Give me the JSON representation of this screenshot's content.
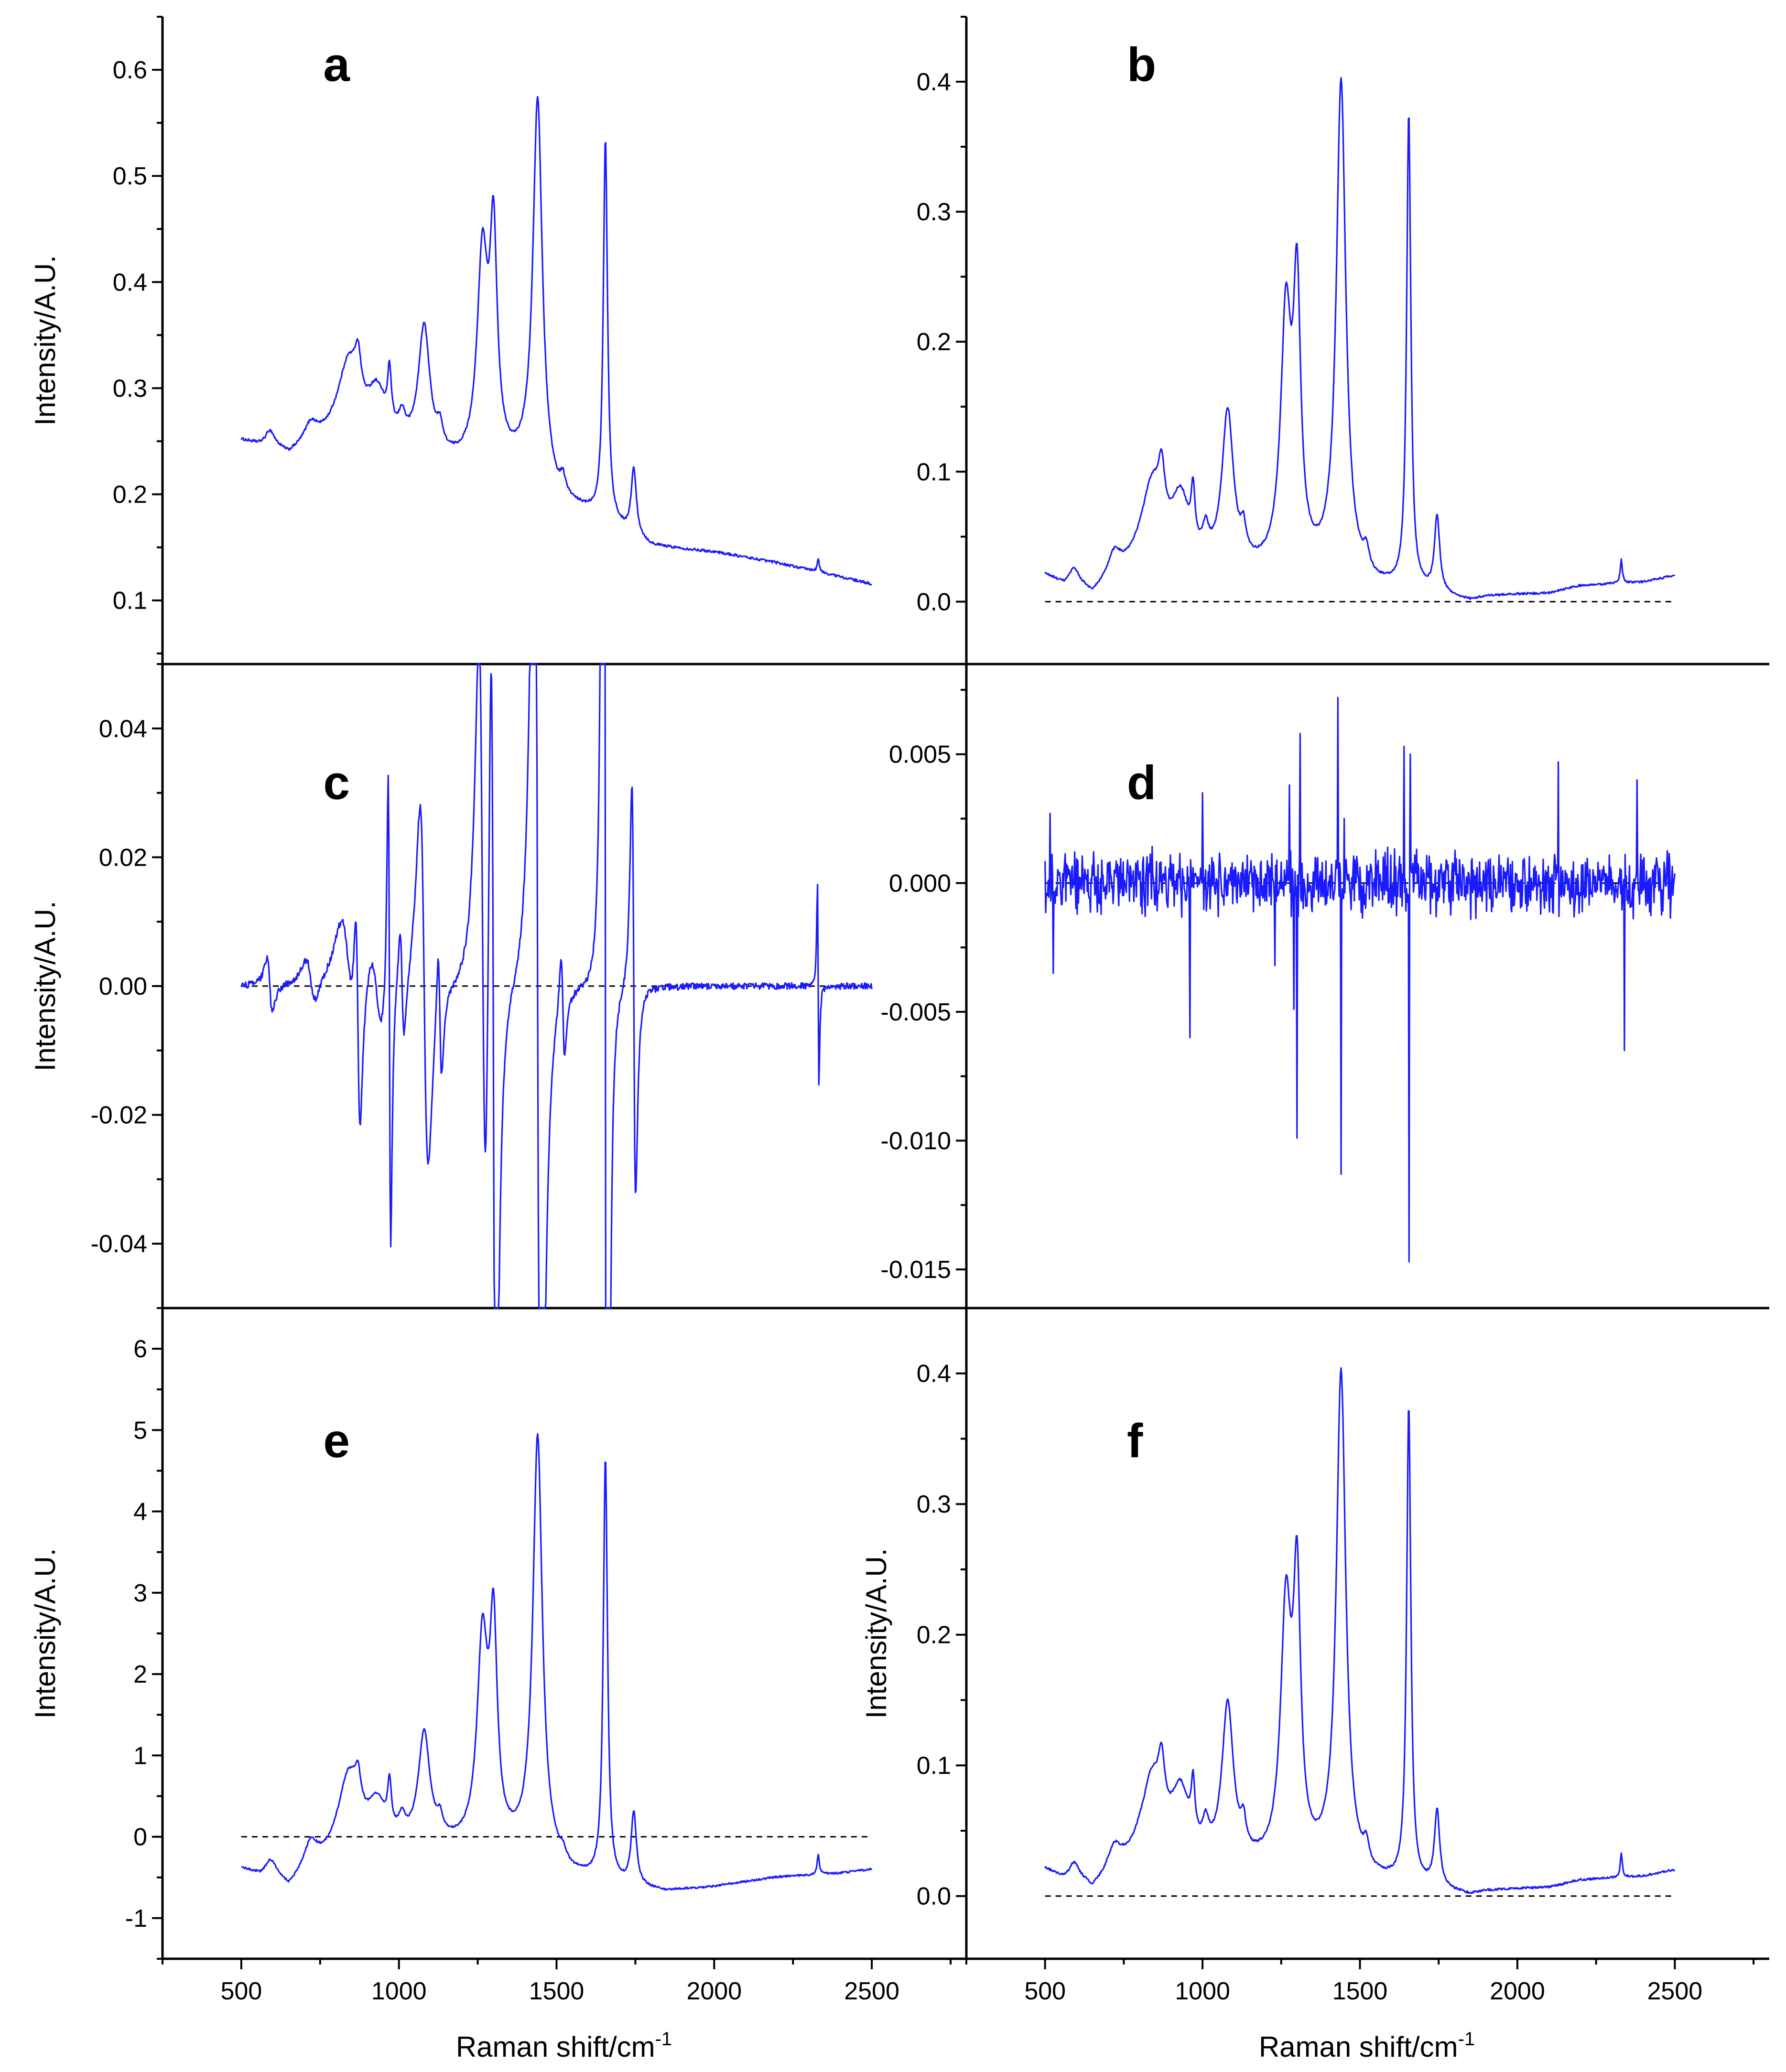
{
  "chart_data": {
    "type": "line",
    "layout": "3x2 grid of panels sharing the x axis within each column",
    "colors": {
      "line": "#1a1aff",
      "axes": "#000000",
      "zero_line": "#000000"
    },
    "shared_xlabel": "Raman shift/cm",
    "shared_xlabel_superscript": "-1",
    "x_range": [
      500,
      2500
    ],
    "xlim": [
      250,
      2800
    ],
    "x_ticks": [
      500,
      1000,
      1500,
      2000,
      2500
    ],
    "x_tick_labels": [
      "500",
      "1000",
      "1500",
      "2000",
      "2500"
    ],
    "panels": [
      {
        "id": "a",
        "label": "a",
        "ylabel": "Intensity/A.U.",
        "ylim": [
          0.04,
          0.65
        ],
        "y_ticks": [
          0.1,
          0.2,
          0.3,
          0.4,
          0.5,
          0.6
        ],
        "y_tick_labels": [
          "0.1",
          "0.2",
          "0.3",
          "0.4",
          "0.5",
          "0.6"
        ],
        "zero_line": false,
        "baseline": [
          [
            500,
            0.25
          ],
          [
            560,
            0.245
          ],
          [
            600,
            0.245
          ],
          [
            650,
            0.235
          ],
          [
            720,
            0.245
          ],
          [
            800,
            0.25
          ],
          [
            1000,
            0.24
          ],
          [
            1100,
            0.23
          ],
          [
            1200,
            0.225
          ],
          [
            1300,
            0.225
          ],
          [
            1400,
            0.22
          ],
          [
            1500,
            0.19
          ],
          [
            1600,
            0.18
          ],
          [
            1700,
            0.165
          ],
          [
            1800,
            0.15
          ],
          [
            2000,
            0.145
          ],
          [
            2200,
            0.135
          ],
          [
            2400,
            0.122
          ],
          [
            2500,
            0.115
          ]
        ],
        "peaks": [
          [
            590,
            0.012,
            15
          ],
          [
            720,
            0.016,
            25
          ],
          [
            840,
            0.07,
            40
          ],
          [
            870,
            0.04,
            12
          ],
          [
            930,
            0.045,
            35
          ],
          [
            970,
            0.05,
            7
          ],
          [
            1010,
            0.02,
            12
          ],
          [
            1080,
            0.12,
            22
          ],
          [
            1130,
            0.02,
            10
          ],
          [
            1265,
            0.19,
            20
          ],
          [
            1300,
            0.2,
            14
          ],
          [
            1440,
            0.36,
            18
          ],
          [
            1520,
            0.015,
            10
          ],
          [
            1655,
            0.36,
            8
          ],
          [
            1745,
            0.062,
            10
          ],
          [
            2330,
            0.012,
            4
          ]
        ],
        "noise": 0.0012
      },
      {
        "id": "b",
        "label": "b",
        "ylabel": "",
        "ylim": [
          -0.048,
          0.45
        ],
        "y_ticks": [
          0.0,
          0.1,
          0.2,
          0.3,
          0.4
        ],
        "y_tick_labels": [
          "0.0",
          "0.1",
          "0.2",
          "0.3",
          "0.4"
        ],
        "zero_line": true,
        "baseline": [
          [
            500,
            0.02
          ],
          [
            560,
            0.012
          ],
          [
            600,
            0.015
          ],
          [
            650,
            0.003
          ],
          [
            700,
            0.012
          ],
          [
            800,
            0.025
          ],
          [
            1000,
            0.02
          ],
          [
            1150,
            0.02
          ],
          [
            1250,
            0.02
          ],
          [
            1400,
            0.02
          ],
          [
            1550,
            0.01
          ],
          [
            1700,
            0.006
          ],
          [
            1850,
            0.0
          ],
          [
            1900,
            0.003
          ],
          [
            2000,
            0.005
          ],
          [
            2100,
            0.006
          ],
          [
            2200,
            0.012
          ],
          [
            2400,
            0.015
          ],
          [
            2500,
            0.02
          ]
        ],
        "peaks": [
          [
            590,
            0.008,
            15
          ],
          [
            720,
            0.018,
            25
          ],
          [
            840,
            0.06,
            40
          ],
          [
            870,
            0.04,
            12
          ],
          [
            930,
            0.05,
            35
          ],
          [
            970,
            0.04,
            7
          ],
          [
            1010,
            0.02,
            12
          ],
          [
            1080,
            0.12,
            22
          ],
          [
            1130,
            0.02,
            10
          ],
          [
            1265,
            0.19,
            20
          ],
          [
            1300,
            0.2,
            14
          ],
          [
            1440,
            0.38,
            18
          ],
          [
            1520,
            0.015,
            10
          ],
          [
            1655,
            0.365,
            8
          ],
          [
            1745,
            0.058,
            10
          ],
          [
            2330,
            0.018,
            4
          ]
        ],
        "noise": 0.0008
      },
      {
        "id": "c",
        "label": "c",
        "ylabel": "Intensity/A.U.",
        "ylim": [
          -0.05,
          0.05
        ],
        "y_ticks": [
          -0.04,
          -0.02,
          0.0,
          0.02,
          0.04
        ],
        "y_tick_labels": [
          "-0.04",
          "-0.02",
          "0.00",
          "0.02",
          "0.04"
        ],
        "zero_line": true,
        "derivative_scale": 0.8,
        "noise": 0.0005
      },
      {
        "id": "d",
        "label": "d",
        "ylabel": "",
        "ylim": [
          -0.0165,
          0.0085
        ],
        "y_ticks": [
          -0.015,
          -0.01,
          -0.005,
          0.0,
          0.005
        ],
        "y_tick_labels": [
          "-0.015",
          "-0.010",
          "-0.005",
          "0.000",
          "0.005"
        ],
        "zero_line": true,
        "noise": 0.0009,
        "spikes": [
          [
            515,
            0.0027
          ],
          [
            525,
            -0.0035
          ],
          [
            960,
            -0.006
          ],
          [
            1000,
            0.0035
          ],
          [
            1230,
            -0.0032
          ],
          [
            1275,
            0.0038
          ],
          [
            1290,
            -0.0049
          ],
          [
            1300,
            -0.0099
          ],
          [
            1310,
            0.0058
          ],
          [
            1430,
            0.0072
          ],
          [
            1440,
            -0.0113
          ],
          [
            1450,
            0.0025
          ],
          [
            1640,
            0.0053
          ],
          [
            1655,
            -0.0147
          ],
          [
            1660,
            0.005
          ],
          [
            2130,
            0.0047
          ],
          [
            2340,
            -0.0065
          ],
          [
            2380,
            0.004
          ]
        ]
      },
      {
        "id": "e",
        "label": "e",
        "ylabel": "Intensity/A.U.",
        "ylim": [
          -1.5,
          6.5
        ],
        "y_ticks": [
          -1,
          0,
          1,
          2,
          3,
          4,
          5,
          6
        ],
        "y_tick_labels": [
          "-1",
          "0",
          "1",
          "2",
          "3",
          "4",
          "5",
          "6"
        ],
        "zero_line": true,
        "baseline": [
          [
            500,
            -0.4
          ],
          [
            560,
            -0.48
          ],
          [
            600,
            -0.42
          ],
          [
            650,
            -0.65
          ],
          [
            700,
            -0.48
          ],
          [
            800,
            -0.3
          ],
          [
            1000,
            -0.15
          ],
          [
            1150,
            -0.15
          ],
          [
            1250,
            -0.15
          ],
          [
            1400,
            -0.2
          ],
          [
            1550,
            -0.5
          ],
          [
            1700,
            -0.62
          ],
          [
            1850,
            -0.68
          ],
          [
            2000,
            -0.62
          ],
          [
            2200,
            -0.5
          ],
          [
            2400,
            -0.45
          ],
          [
            2500,
            -0.4
          ]
        ],
        "peaks": [
          [
            590,
            0.1,
            15
          ],
          [
            720,
            0.3,
            25
          ],
          [
            840,
            0.95,
            40
          ],
          [
            870,
            0.4,
            12
          ],
          [
            930,
            0.5,
            35
          ],
          [
            970,
            0.55,
            7
          ],
          [
            1010,
            0.2,
            12
          ],
          [
            1080,
            1.35,
            22
          ],
          [
            1130,
            0.2,
            10
          ],
          [
            1265,
            2.45,
            20
          ],
          [
            1300,
            2.5,
            14
          ],
          [
            1440,
            5.15,
            18
          ],
          [
            1520,
            0.1,
            10
          ],
          [
            1655,
            5.2,
            8
          ],
          [
            1745,
            0.9,
            10
          ],
          [
            2330,
            0.25,
            4
          ]
        ],
        "noise": 0.012
      },
      {
        "id": "f",
        "label": "f",
        "ylabel": "Intensity/A.U.",
        "ylim": [
          -0.048,
          0.45
        ],
        "y_ticks": [
          0.0,
          0.1,
          0.2,
          0.3,
          0.4
        ],
        "y_tick_labels": [
          "0.0",
          "0.1",
          "0.2",
          "0.3",
          "0.4"
        ],
        "zero_line": true,
        "same_as": "b"
      }
    ]
  }
}
